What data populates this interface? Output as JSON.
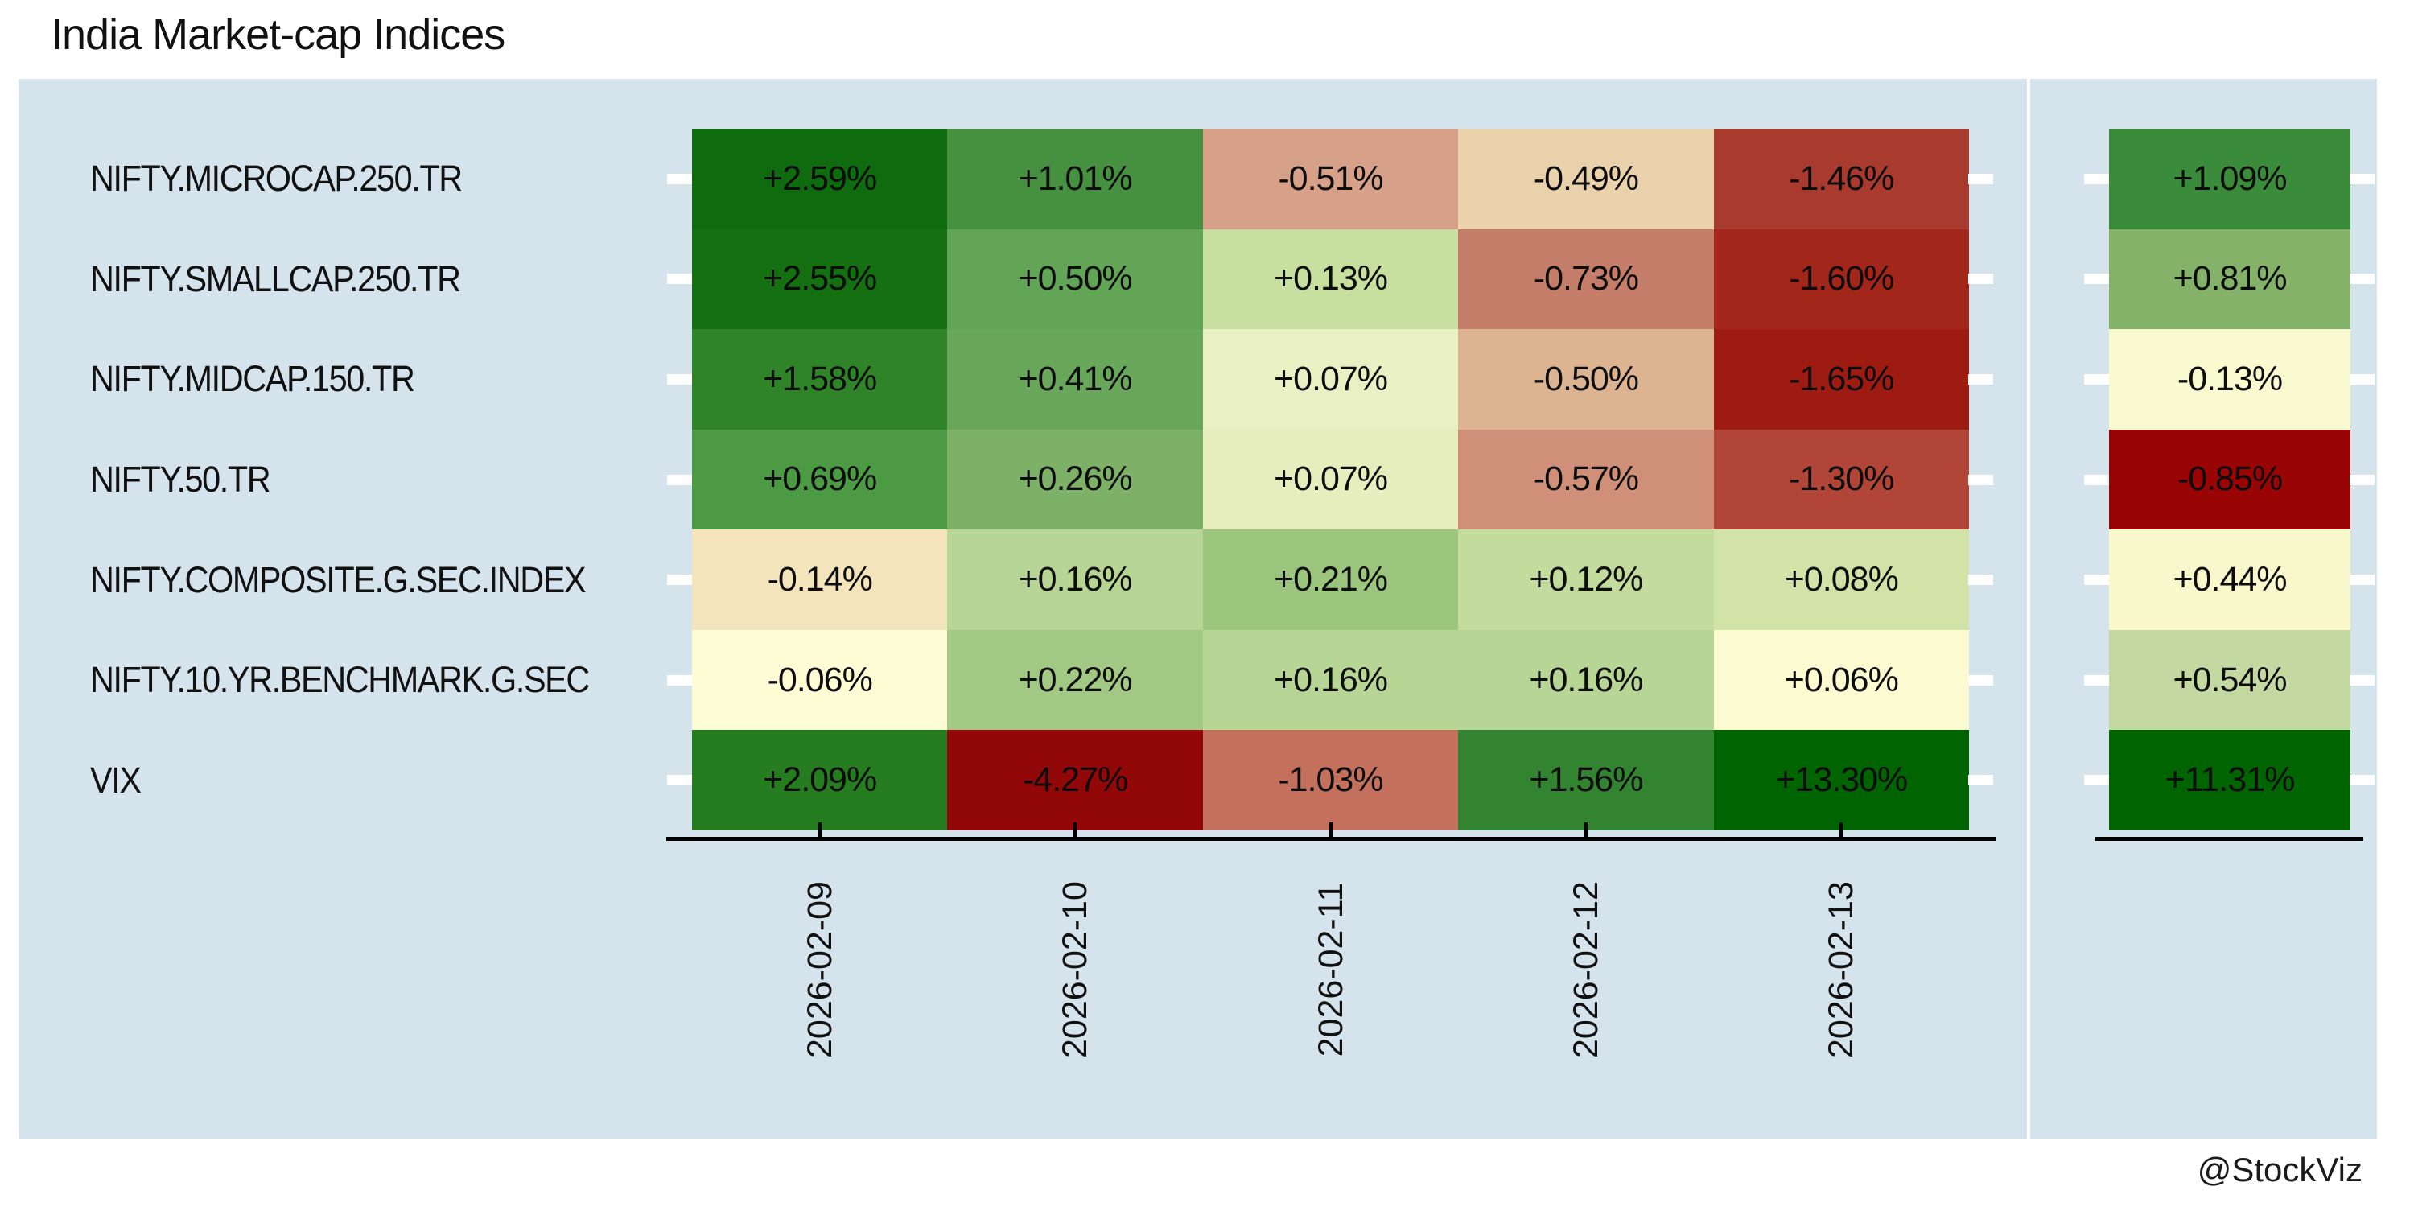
{
  "title": "India Market-cap Indices",
  "watermark": "@StockViz",
  "colors": {
    "panel_bg": "#d5e3ec",
    "axis": "#000000",
    "tick_white": "#ffffff",
    "text": "#111111"
  },
  "chart_data": {
    "type": "heatmap",
    "title": "India Market-cap Indices",
    "rows": [
      "NIFTY.MICROCAP.250.TR",
      "NIFTY.SMALLCAP.250.TR",
      "NIFTY.MIDCAP.150.TR",
      "NIFTY.50.TR",
      "NIFTY.COMPOSITE.G.SEC.INDEX",
      "NIFTY.10.YR.BENCHMARK.G.SEC",
      "VIX"
    ],
    "columns": [
      "2026-02-09",
      "2026-02-10",
      "2026-02-11",
      "2026-02-12",
      "2026-02-13"
    ],
    "values": [
      [
        2.59,
        1.01,
        -0.51,
        -0.49,
        -1.46
      ],
      [
        2.55,
        0.5,
        0.13,
        -0.73,
        -1.6
      ],
      [
        1.58,
        0.41,
        0.07,
        -0.5,
        -1.65
      ],
      [
        0.69,
        0.26,
        0.07,
        -0.57,
        -1.3
      ],
      [
        -0.14,
        0.16,
        0.21,
        0.12,
        0.08
      ],
      [
        -0.06,
        0.22,
        0.16,
        0.16,
        0.06
      ],
      [
        2.09,
        -4.27,
        -1.03,
        1.56,
        13.3
      ]
    ],
    "cell_labels": [
      [
        "+2.59%",
        "+1.01%",
        "-0.51%",
        "-0.49%",
        "-1.46%"
      ],
      [
        "+2.55%",
        "+0.50%",
        "+0.13%",
        "-0.73%",
        "-1.60%"
      ],
      [
        "+1.58%",
        "+0.41%",
        "+0.07%",
        "-0.50%",
        "-1.65%"
      ],
      [
        "+0.69%",
        "+0.26%",
        "+0.07%",
        "-0.57%",
        "-1.30%"
      ],
      [
        "-0.14%",
        "+0.16%",
        "+0.21%",
        "+0.12%",
        "+0.08%"
      ],
      [
        "-0.06%",
        "+0.22%",
        "+0.16%",
        "+0.16%",
        "+0.06%"
      ],
      [
        "+2.09%",
        "-4.27%",
        "-1.03%",
        "+1.56%",
        "+13.30%"
      ]
    ],
    "cell_colors": [
      [
        "#0e6c0e",
        "#459140",
        "#d7a088",
        "#e9d2ab",
        "#a93a2e"
      ],
      [
        "#147010",
        "#63a557",
        "#c7df9f",
        "#c57e69",
        "#a3261b"
      ],
      [
        "#2e8426",
        "#69a85b",
        "#e9f0c3",
        "#dcb492",
        "#9d1b10"
      ],
      [
        "#4c9a43",
        "#7cb167",
        "#e6eebe",
        "#d08f78",
        "#b14537"
      ],
      [
        "#f3e4bb",
        "#b7d594",
        "#9cc67d",
        "#c3db9c",
        "#d1e3a7"
      ],
      [
        "#fdfcd5",
        "#a2c983",
        "#b7d594",
        "#b7d594",
        "#fbfad0"
      ],
      [
        "#267d20",
        "#920707",
        "#c3705c",
        "#338431",
        "#006400"
      ]
    ],
    "summary": {
      "values": [
        1.09,
        0.81,
        -0.13,
        -0.85,
        0.44,
        0.54,
        11.31
      ],
      "labels": [
        "+1.09%",
        "+0.81%",
        "-0.13%",
        "-0.85%",
        "+0.44%",
        "+0.54%",
        "+11.31%"
      ],
      "colors": [
        "#3a8c3a",
        "#84b268",
        "#fafad1",
        "#990404",
        "#f8f8cc",
        "#c4d9a2",
        "#006400"
      ]
    },
    "legend": "none",
    "grid": "off"
  }
}
